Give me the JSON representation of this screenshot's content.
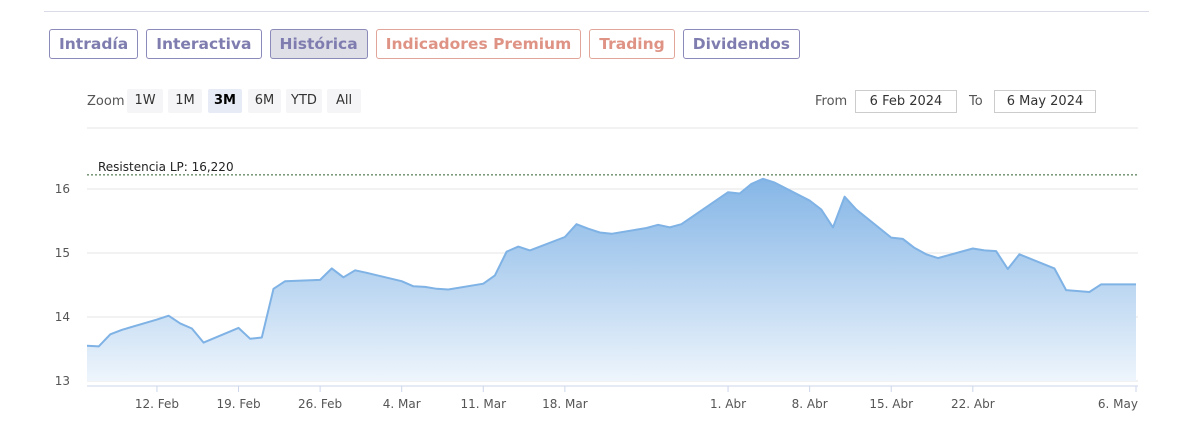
{
  "tabs": [
    {
      "label": "Intradía",
      "style": "purple",
      "active": false
    },
    {
      "label": "Interactiva",
      "style": "purple",
      "active": false
    },
    {
      "label": "Histórica",
      "style": "purple",
      "active": true
    },
    {
      "label": "Indicadores Premium",
      "style": "orange",
      "active": false
    },
    {
      "label": "Trading",
      "style": "orange",
      "active": false
    },
    {
      "label": "Dividendos",
      "style": "purple",
      "active": false
    }
  ],
  "zoom": {
    "label": "Zoom",
    "buttons": [
      "1W",
      "1M",
      "3M",
      "6M",
      "YTD",
      "All"
    ],
    "selected": "3M"
  },
  "range": {
    "from_label": "From",
    "from_value": "6 Feb 2024",
    "to_label": "To",
    "to_value": "6 May 2024"
  },
  "colors": {
    "line": "#7fb2e5",
    "fill_top": "#7fb2e5",
    "fill_bottom": "#eef5fc",
    "resistance": "#2f5e2f",
    "tab_purple": "#7f7daf",
    "tab_orange": "#df9385"
  },
  "chart_data": {
    "type": "area",
    "title": "",
    "xlabel": "",
    "ylabel": "",
    "ylim": [
      13,
      16.3
    ],
    "yticks": [
      13,
      14,
      15,
      16
    ],
    "x_tick_labels": [
      "12. Feb",
      "19. Feb",
      "26. Feb",
      "4. Mar",
      "11. Mar",
      "18. Mar",
      "1. Abr",
      "8. Abr",
      "15. Abr",
      "22. Abr",
      "6. May"
    ],
    "x_tick_dates": [
      "2024-02-12",
      "2024-02-19",
      "2024-02-26",
      "2024-03-04",
      "2024-03-11",
      "2024-03-18",
      "2024-04-01",
      "2024-04-08",
      "2024-04-15",
      "2024-04-22",
      "2024-05-06"
    ],
    "x_range": [
      "2024-02-06",
      "2024-05-06"
    ],
    "grid": true,
    "resistance": {
      "label": "Resistencia LP: 16,220",
      "value": 16.22
    },
    "series": [
      {
        "x": [
          "2024-02-06",
          "2024-02-07",
          "2024-02-08",
          "2024-02-09",
          "2024-02-12",
          "2024-02-13",
          "2024-02-14",
          "2024-02-15",
          "2024-02-16",
          "2024-02-19",
          "2024-02-20",
          "2024-02-21",
          "2024-02-22",
          "2024-02-23",
          "2024-02-26",
          "2024-02-27",
          "2024-02-28",
          "2024-02-29",
          "2024-03-01",
          "2024-03-04",
          "2024-03-05",
          "2024-03-06",
          "2024-03-07",
          "2024-03-08",
          "2024-03-11",
          "2024-03-12",
          "2024-03-13",
          "2024-03-14",
          "2024-03-15",
          "2024-03-18",
          "2024-03-19",
          "2024-03-20",
          "2024-03-21",
          "2024-03-22",
          "2024-03-25",
          "2024-03-26",
          "2024-03-27",
          "2024-03-28",
          "2024-04-01",
          "2024-04-02",
          "2024-04-03",
          "2024-04-04",
          "2024-04-05",
          "2024-04-08",
          "2024-04-09",
          "2024-04-10",
          "2024-04-11",
          "2024-04-12",
          "2024-04-15",
          "2024-04-16",
          "2024-04-17",
          "2024-04-18",
          "2024-04-19",
          "2024-04-22",
          "2024-04-23",
          "2024-04-24",
          "2024-04-25",
          "2024-04-26",
          "2024-04-29",
          "2024-04-30",
          "2024-05-02",
          "2024-05-03",
          "2024-05-06"
        ],
        "values": [
          13.55,
          13.54,
          13.73,
          13.8,
          13.96,
          14.02,
          13.9,
          13.82,
          13.6,
          13.83,
          13.66,
          13.68,
          14.44,
          14.56,
          14.58,
          14.76,
          14.62,
          14.73,
          14.69,
          14.56,
          14.48,
          14.47,
          14.44,
          14.43,
          14.52,
          14.65,
          15.02,
          15.1,
          15.04,
          15.25,
          15.45,
          15.38,
          15.32,
          15.3,
          15.39,
          15.44,
          15.4,
          15.45,
          15.95,
          15.93,
          16.08,
          16.16,
          16.1,
          15.82,
          15.68,
          15.4,
          15.88,
          15.68,
          15.24,
          15.22,
          15.08,
          14.98,
          14.92,
          15.07,
          15.04,
          15.03,
          14.75,
          14.98,
          14.76,
          14.42,
          14.39,
          14.51,
          14.51
        ]
      }
    ]
  }
}
